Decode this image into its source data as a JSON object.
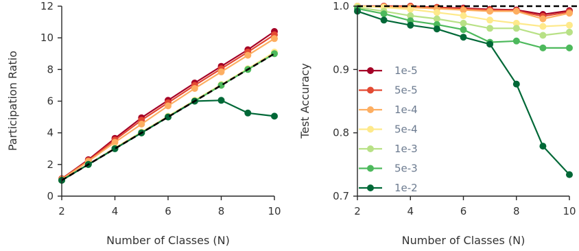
{
  "chart_data": [
    {
      "type": "line",
      "xlabel": "Number of Classes (N)",
      "ylabel": "Participation Ratio",
      "xlim": [
        2,
        10
      ],
      "ylim": [
        0,
        12
      ],
      "xticks": [
        2,
        4,
        6,
        8,
        10
      ],
      "yticks": [
        0,
        2,
        4,
        6,
        8,
        10,
        12
      ],
      "x": [
        2,
        3,
        4,
        5,
        6,
        7,
        8,
        9,
        10
      ],
      "reference_line": {
        "style": "dashed",
        "color": "#000000",
        "values": [
          1,
          2,
          3,
          4,
          5,
          6,
          7,
          8,
          9
        ]
      },
      "series": [
        {
          "name": "1e-5",
          "color": "#a50026",
          "values": [
            1.1,
            2.3,
            3.65,
            4.95,
            6.05,
            7.15,
            8.2,
            9.25,
            10.4
          ]
        },
        {
          "name": "5e-5",
          "color": "#e34a33",
          "values": [
            1.1,
            2.25,
            3.55,
            4.8,
            5.9,
            7.0,
            8.05,
            9.1,
            10.2
          ]
        },
        {
          "name": "1e-4",
          "color": "#fdae61",
          "values": [
            1.05,
            2.2,
            3.4,
            4.55,
            5.7,
            6.8,
            7.85,
            8.9,
            9.95
          ]
        },
        {
          "name": "5e-4",
          "color": "#fee98b",
          "values": [
            1.0,
            2.0,
            3.05,
            4.05,
            5.05,
            6.05,
            7.05,
            8.05,
            9.1
          ]
        },
        {
          "name": "1e-3",
          "color": "#b8e186",
          "values": [
            1.0,
            2.0,
            3.0,
            4.0,
            5.0,
            6.0,
            7.0,
            8.0,
            9.0
          ]
        },
        {
          "name": "5e-3",
          "color": "#4db95c",
          "values": [
            1.0,
            2.0,
            3.0,
            4.0,
            5.0,
            6.0,
            7.0,
            8.0,
            9.0
          ]
        },
        {
          "name": "1e-2",
          "color": "#006837",
          "values": [
            1.0,
            2.0,
            3.0,
            4.0,
            5.0,
            6.0,
            6.05,
            5.25,
            5.05
          ]
        }
      ]
    },
    {
      "type": "line",
      "xlabel": "Number of Classes (N)",
      "ylabel": "Test Accuracy",
      "xlim": [
        2,
        10
      ],
      "ylim": [
        0.7,
        1.0
      ],
      "xticks": [
        2,
        4,
        6,
        8,
        10
      ],
      "yticks": [
        0.7,
        0.8,
        0.9,
        1.0
      ],
      "ytick_labels": [
        "0.7",
        "0.8",
        "0.9",
        "1.0"
      ],
      "x": [
        2,
        3,
        4,
        5,
        6,
        7,
        8,
        9,
        10
      ],
      "reference_line": {
        "style": "dashed",
        "color": "#000000",
        "value": 1.0
      },
      "legend": "center-left",
      "series": [
        {
          "name": "1e-5",
          "color": "#a50026",
          "values": [
            1.0,
            1.0,
            1.0,
            0.998,
            0.997,
            0.995,
            0.994,
            0.987,
            0.993
          ]
        },
        {
          "name": "5e-5",
          "color": "#e34a33",
          "values": [
            1.0,
            1.0,
            1.0,
            0.998,
            0.996,
            0.994,
            0.993,
            0.984,
            0.991
          ]
        },
        {
          "name": "1e-4",
          "color": "#fdae61",
          "values": [
            1.0,
            0.999,
            0.998,
            0.996,
            0.994,
            0.992,
            0.992,
            0.98,
            0.989
          ]
        },
        {
          "name": "5e-4",
          "color": "#fee98b",
          "values": [
            1.0,
            0.998,
            0.995,
            0.99,
            0.985,
            0.978,
            0.973,
            0.968,
            0.97
          ]
        },
        {
          "name": "1e-3",
          "color": "#b8e186",
          "values": [
            0.998,
            0.992,
            0.985,
            0.98,
            0.973,
            0.965,
            0.965,
            0.954,
            0.959
          ]
        },
        {
          "name": "5e-3",
          "color": "#4db95c",
          "values": [
            0.996,
            0.988,
            0.977,
            0.971,
            0.963,
            0.943,
            0.945,
            0.934,
            0.934
          ]
        },
        {
          "name": "1e-2",
          "color": "#006837",
          "values": [
            0.992,
            0.978,
            0.97,
            0.964,
            0.951,
            0.94,
            0.877,
            0.779,
            0.734
          ]
        }
      ]
    }
  ]
}
